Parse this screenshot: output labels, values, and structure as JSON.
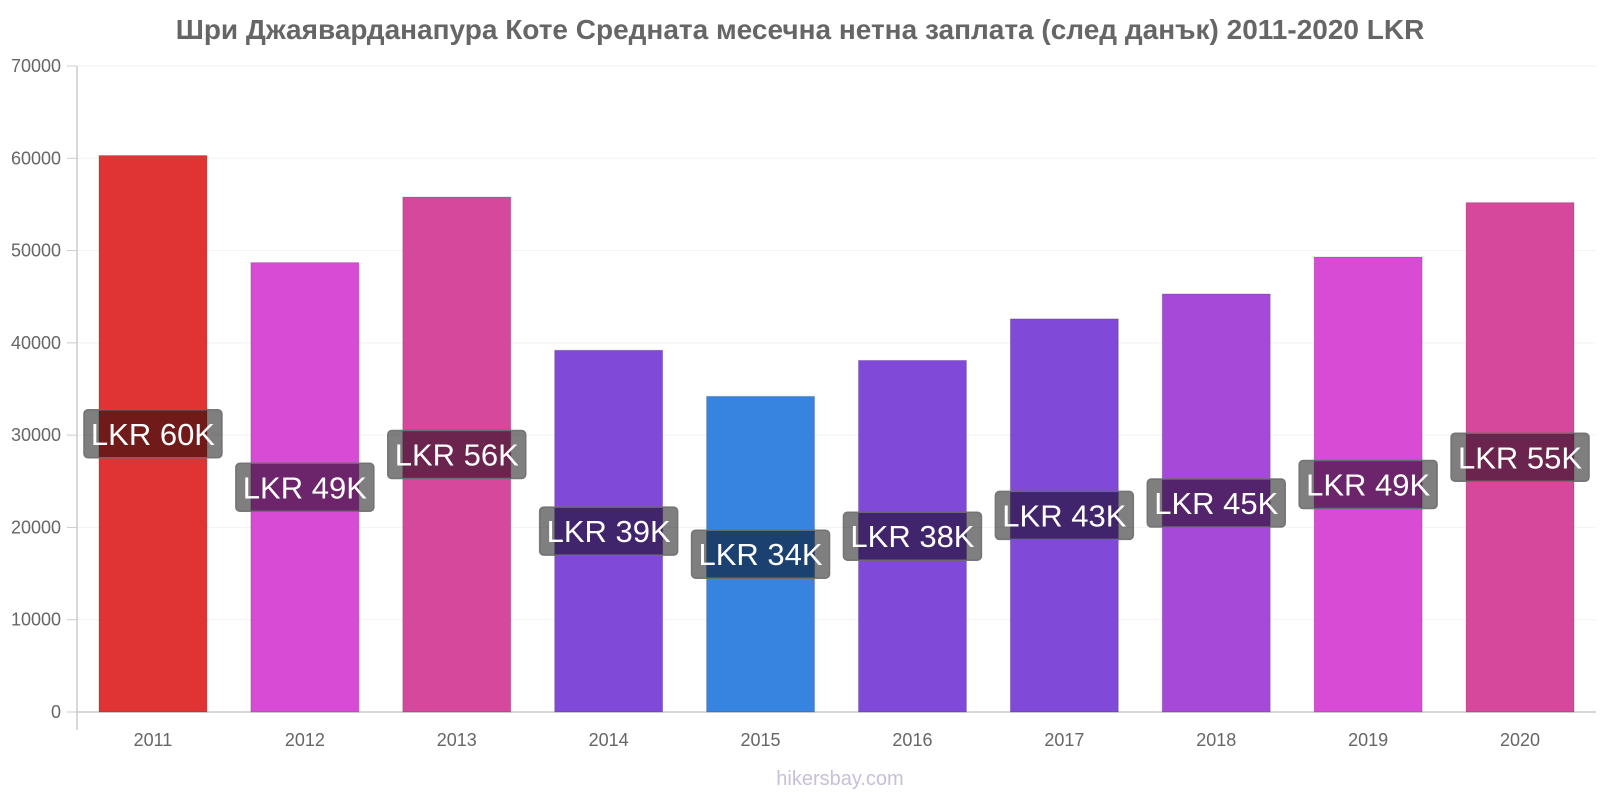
{
  "chart_data": {
    "type": "bar",
    "title": "Шри Джаяварданапура Коте Средната месечна нетна заплата (след данък) 2011-2020 LKR",
    "xlabel": "",
    "ylabel": "",
    "categories": [
      "2011",
      "2012",
      "2013",
      "2014",
      "2015",
      "2016",
      "2017",
      "2018",
      "2019",
      "2020"
    ],
    "values": [
      60300,
      48700,
      55800,
      39200,
      34200,
      38100,
      42600,
      45300,
      49300,
      55200
    ],
    "data_labels": [
      "LKR 60K",
      "LKR 49K",
      "LKR 56K",
      "LKR 39K",
      "LKR 34K",
      "LKR 38K",
      "LKR 43K",
      "LKR 45K",
      "LKR 49K",
      "LKR 55K"
    ],
    "colors": [
      "#e03434",
      "#d84bd4",
      "#d6489b",
      "#8049d8",
      "#3683e0",
      "#8049d8",
      "#8049d8",
      "#a649d8",
      "#d84bd4",
      "#d6489b"
    ],
    "ylim": [
      0,
      70000
    ],
    "yticks": [
      "0",
      "10000",
      "20000",
      "30000",
      "40000",
      "50000",
      "60000",
      "70000"
    ],
    "grid": true,
    "legend": "none"
  },
  "watermark": "hikersbay.com"
}
